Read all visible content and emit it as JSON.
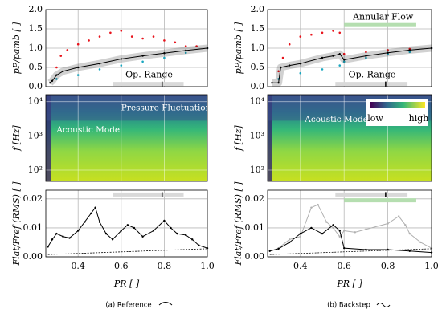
{
  "chart_data": [
    {
      "type": "line",
      "ylabel": "pP/pamb [ ]",
      "xlim": [
        0.25,
        1.0
      ],
      "xticks": [
        0.4,
        0.6,
        0.8,
        1.0
      ],
      "ylim": [
        0,
        2
      ],
      "yticks": [
        {
          "value": 0,
          "label": "0.0"
        },
        0.5,
        {
          "value": 1,
          "label": "1.0"
        },
        1.5,
        {
          "value": 2,
          "label": "2.0"
        }
      ],
      "grid": true,
      "series": [
        {
          "style": "points",
          "color": "#e8141c",
          "x": [
            0.3,
            0.32,
            0.35,
            0.4,
            0.45,
            0.5,
            0.55,
            0.6,
            0.65,
            0.7,
            0.75,
            0.8,
            0.85,
            0.9,
            0.95,
            1.0
          ],
          "values": [
            0.5,
            0.8,
            0.95,
            1.1,
            1.2,
            1.3,
            1.4,
            1.45,
            1.3,
            1.25,
            1.3,
            1.2,
            1.15,
            1.05,
            1.05,
            1.0
          ]
        },
        {
          "style": "points",
          "color": "#1aa7c0",
          "x": [
            0.3,
            0.4,
            0.5,
            0.6,
            0.7,
            0.8,
            0.9,
            1.0
          ],
          "values": [
            0.2,
            0.3,
            0.45,
            0.55,
            0.65,
            0.75,
            0.88,
            1.0
          ]
        },
        {
          "style": "band-line",
          "color": "#000000",
          "x": [
            0.27,
            0.28,
            0.3,
            0.33,
            0.4,
            0.5,
            0.6,
            0.7,
            0.8,
            0.9,
            1.0
          ],
          "values": [
            0.1,
            0.15,
            0.3,
            0.4,
            0.5,
            0.6,
            0.72,
            0.8,
            0.87,
            0.94,
            1.0
          ]
        }
      ],
      "ranges": [
        {
          "label": "Op. Range",
          "color": "#d9d9d9",
          "x": [
            0.56,
            0.89
          ],
          "y": 0.07,
          "marker": 0.79,
          "label_at": [
            0.62,
            0.3
          ]
        }
      ]
    },
    {
      "type": "line",
      "ylabel": "pP/pamb [ ]",
      "xlim": [
        0.25,
        1.0
      ],
      "xticks": [
        0.4,
        0.6,
        0.8,
        1.0
      ],
      "ylim": [
        0,
        2
      ],
      "yticks": [
        {
          "value": 0,
          "label": "0.0"
        },
        0.5,
        {
          "value": 1,
          "label": "1.0"
        },
        1.5,
        {
          "value": 2,
          "label": "2.0"
        }
      ],
      "grid": true,
      "series": [
        {
          "style": "points",
          "color": "#e8141c",
          "x": [
            0.3,
            0.32,
            0.35,
            0.4,
            0.45,
            0.5,
            0.55,
            0.58,
            0.6,
            0.7,
            0.8,
            0.9,
            1.0
          ],
          "values": [
            0.4,
            0.75,
            1.1,
            1.3,
            1.35,
            1.4,
            1.45,
            1.4,
            0.85,
            0.9,
            0.95,
            0.98,
            1.0
          ]
        },
        {
          "style": "points",
          "color": "#1aa7c0",
          "x": [
            0.3,
            0.4,
            0.5,
            0.58,
            0.6,
            0.7,
            0.8,
            0.9,
            1.0
          ],
          "values": [
            0.2,
            0.35,
            0.45,
            0.55,
            0.65,
            0.75,
            0.85,
            0.9,
            1.0
          ]
        },
        {
          "style": "band-line",
          "color": "#000000",
          "x": [
            0.27,
            0.3,
            0.31,
            0.35,
            0.4,
            0.5,
            0.55,
            0.58,
            0.6,
            0.7,
            0.8,
            0.9,
            1.0
          ],
          "values": [
            0.1,
            0.1,
            0.5,
            0.55,
            0.6,
            0.75,
            0.8,
            0.85,
            0.7,
            0.8,
            0.88,
            0.95,
            1.0
          ]
        }
      ],
      "ranges": [
        {
          "label": "Op. Range",
          "color": "#d9d9d9",
          "x": [
            0.56,
            0.89
          ],
          "y": 0.07,
          "marker": 0.79,
          "label_at": [
            0.62,
            0.3
          ]
        },
        {
          "label": "Annular Flow",
          "color": "#b5deb0",
          "x": [
            0.6,
            0.93
          ],
          "y": 1.6,
          "label_at": [
            0.64,
            1.8
          ]
        }
      ]
    },
    {
      "type": "spectrogram",
      "ylabel": "f [Hz]",
      "log": true,
      "xlim": [
        0.25,
        1.0
      ],
      "xticks": [
        0.4,
        0.6,
        0.8,
        1.0
      ],
      "ylim": [
        47,
        16000
      ],
      "yticks": [
        {
          "value": 100,
          "label": "10²"
        },
        {
          "value": 1000,
          "label": "10³"
        },
        {
          "value": 10000,
          "label": "10⁴"
        }
      ],
      "grid": true,
      "annotations": [
        {
          "text": "Pressure Fluctuations (PSD)",
          "x": 0.6,
          "y": 6500
        },
        {
          "text": "Acoustic Mode",
          "x": 0.3,
          "y": 1500
        }
      ]
    },
    {
      "type": "spectrogram",
      "ylabel": "f [Hz]",
      "log": true,
      "xlim": [
        0.25,
        1.0
      ],
      "xticks": [
        0.4,
        0.6,
        0.8,
        1.0
      ],
      "ylim": [
        47,
        16000
      ],
      "yticks": [
        {
          "value": 100,
          "label": "10²"
        },
        {
          "value": 1000,
          "label": "10³"
        },
        {
          "value": 10000,
          "label": "10⁴"
        }
      ],
      "grid": true,
      "annotations": [
        {
          "text": "Acoustic Mode",
          "x": 0.42,
          "y": 3000
        }
      ],
      "colorbar_labels": [
        "low",
        "high"
      ]
    },
    {
      "type": "line",
      "ylabel": "Flat/Fref (RMS) [ ]",
      "xlabel": "PR [ ]",
      "xlim": [
        0.25,
        1.0
      ],
      "xticks": [
        0.4,
        0.6,
        0.8,
        {
          "value": 1,
          "label": "1.0"
        }
      ],
      "ylim": [
        0,
        0.023
      ],
      "yticks": [
        {
          "value": 0,
          "label": "0.00"
        },
        0.01,
        0.02
      ],
      "grid": true,
      "series": [
        {
          "style": "line",
          "color": "#000000",
          "x": [
            0.26,
            0.28,
            0.3,
            0.33,
            0.36,
            0.4,
            0.43,
            0.46,
            0.48,
            0.5,
            0.53,
            0.56,
            0.6,
            0.63,
            0.66,
            0.7,
            0.75,
            0.8,
            0.83,
            0.86,
            0.9,
            0.93,
            0.96,
            1.0
          ],
          "values": [
            0.0035,
            0.006,
            0.008,
            0.007,
            0.0065,
            0.009,
            0.012,
            0.015,
            0.017,
            0.012,
            0.008,
            0.006,
            0.009,
            0.011,
            0.01,
            0.007,
            0.009,
            0.0125,
            0.01,
            0.008,
            0.0075,
            0.006,
            0.004,
            0.003
          ]
        },
        {
          "style": "dashed",
          "color": "#000000",
          "x": [
            0.26,
            1.0
          ],
          "values": [
            0.0008,
            0.0028
          ]
        }
      ],
      "ranges": [
        {
          "color": "#d9d9d9",
          "x": [
            0.56,
            0.89
          ],
          "y": 0.0215,
          "marker": 0.79
        }
      ]
    },
    {
      "type": "line",
      "ylabel": "Flat/Fref (RMS) [ ]",
      "xlabel": "PR [ ]",
      "xlim": [
        0.25,
        1.0
      ],
      "xticks": [
        0.4,
        0.6,
        0.8,
        {
          "value": 1,
          "label": "1.0"
        }
      ],
      "ylim": [
        0,
        0.023
      ],
      "yticks": [
        {
          "value": 0,
          "label": "0.00"
        },
        0.01,
        0.02
      ],
      "grid": true,
      "series": [
        {
          "style": "line",
          "color": "#b0b0b0",
          "x": [
            0.3,
            0.35,
            0.4,
            0.45,
            0.48,
            0.52,
            0.55,
            0.58,
            0.6,
            0.65,
            0.7,
            0.8,
            0.85,
            0.88,
            0.9,
            0.95,
            1.0
          ],
          "values": [
            0.003,
            0.006,
            0.007,
            0.017,
            0.018,
            0.012,
            0.01,
            0.007,
            0.009,
            0.0085,
            0.0095,
            0.0115,
            0.014,
            0.011,
            0.008,
            0.005,
            0.003
          ]
        },
        {
          "style": "line",
          "color": "#000000",
          "x": [
            0.26,
            0.3,
            0.35,
            0.4,
            0.45,
            0.5,
            0.55,
            0.58,
            0.6,
            0.7,
            0.8,
            0.9,
            1.0
          ],
          "values": [
            0.002,
            0.0028,
            0.005,
            0.008,
            0.01,
            0.008,
            0.011,
            0.009,
            0.003,
            0.0025,
            0.0025,
            0.002,
            0.0015
          ]
        },
        {
          "style": "dashed",
          "color": "#000000",
          "x": [
            0.26,
            1.0
          ],
          "values": [
            0.0008,
            0.0028
          ]
        }
      ],
      "ranges": [
        {
          "color": "#d9d9d9",
          "x": [
            0.56,
            0.89
          ],
          "y": 0.0215,
          "marker": 0.79
        },
        {
          "color": "#b5deb0",
          "x": [
            0.6,
            0.93
          ],
          "y": 0.0195
        }
      ]
    }
  ],
  "captions": [
    "(a) Reference",
    "(b) Backstep"
  ]
}
